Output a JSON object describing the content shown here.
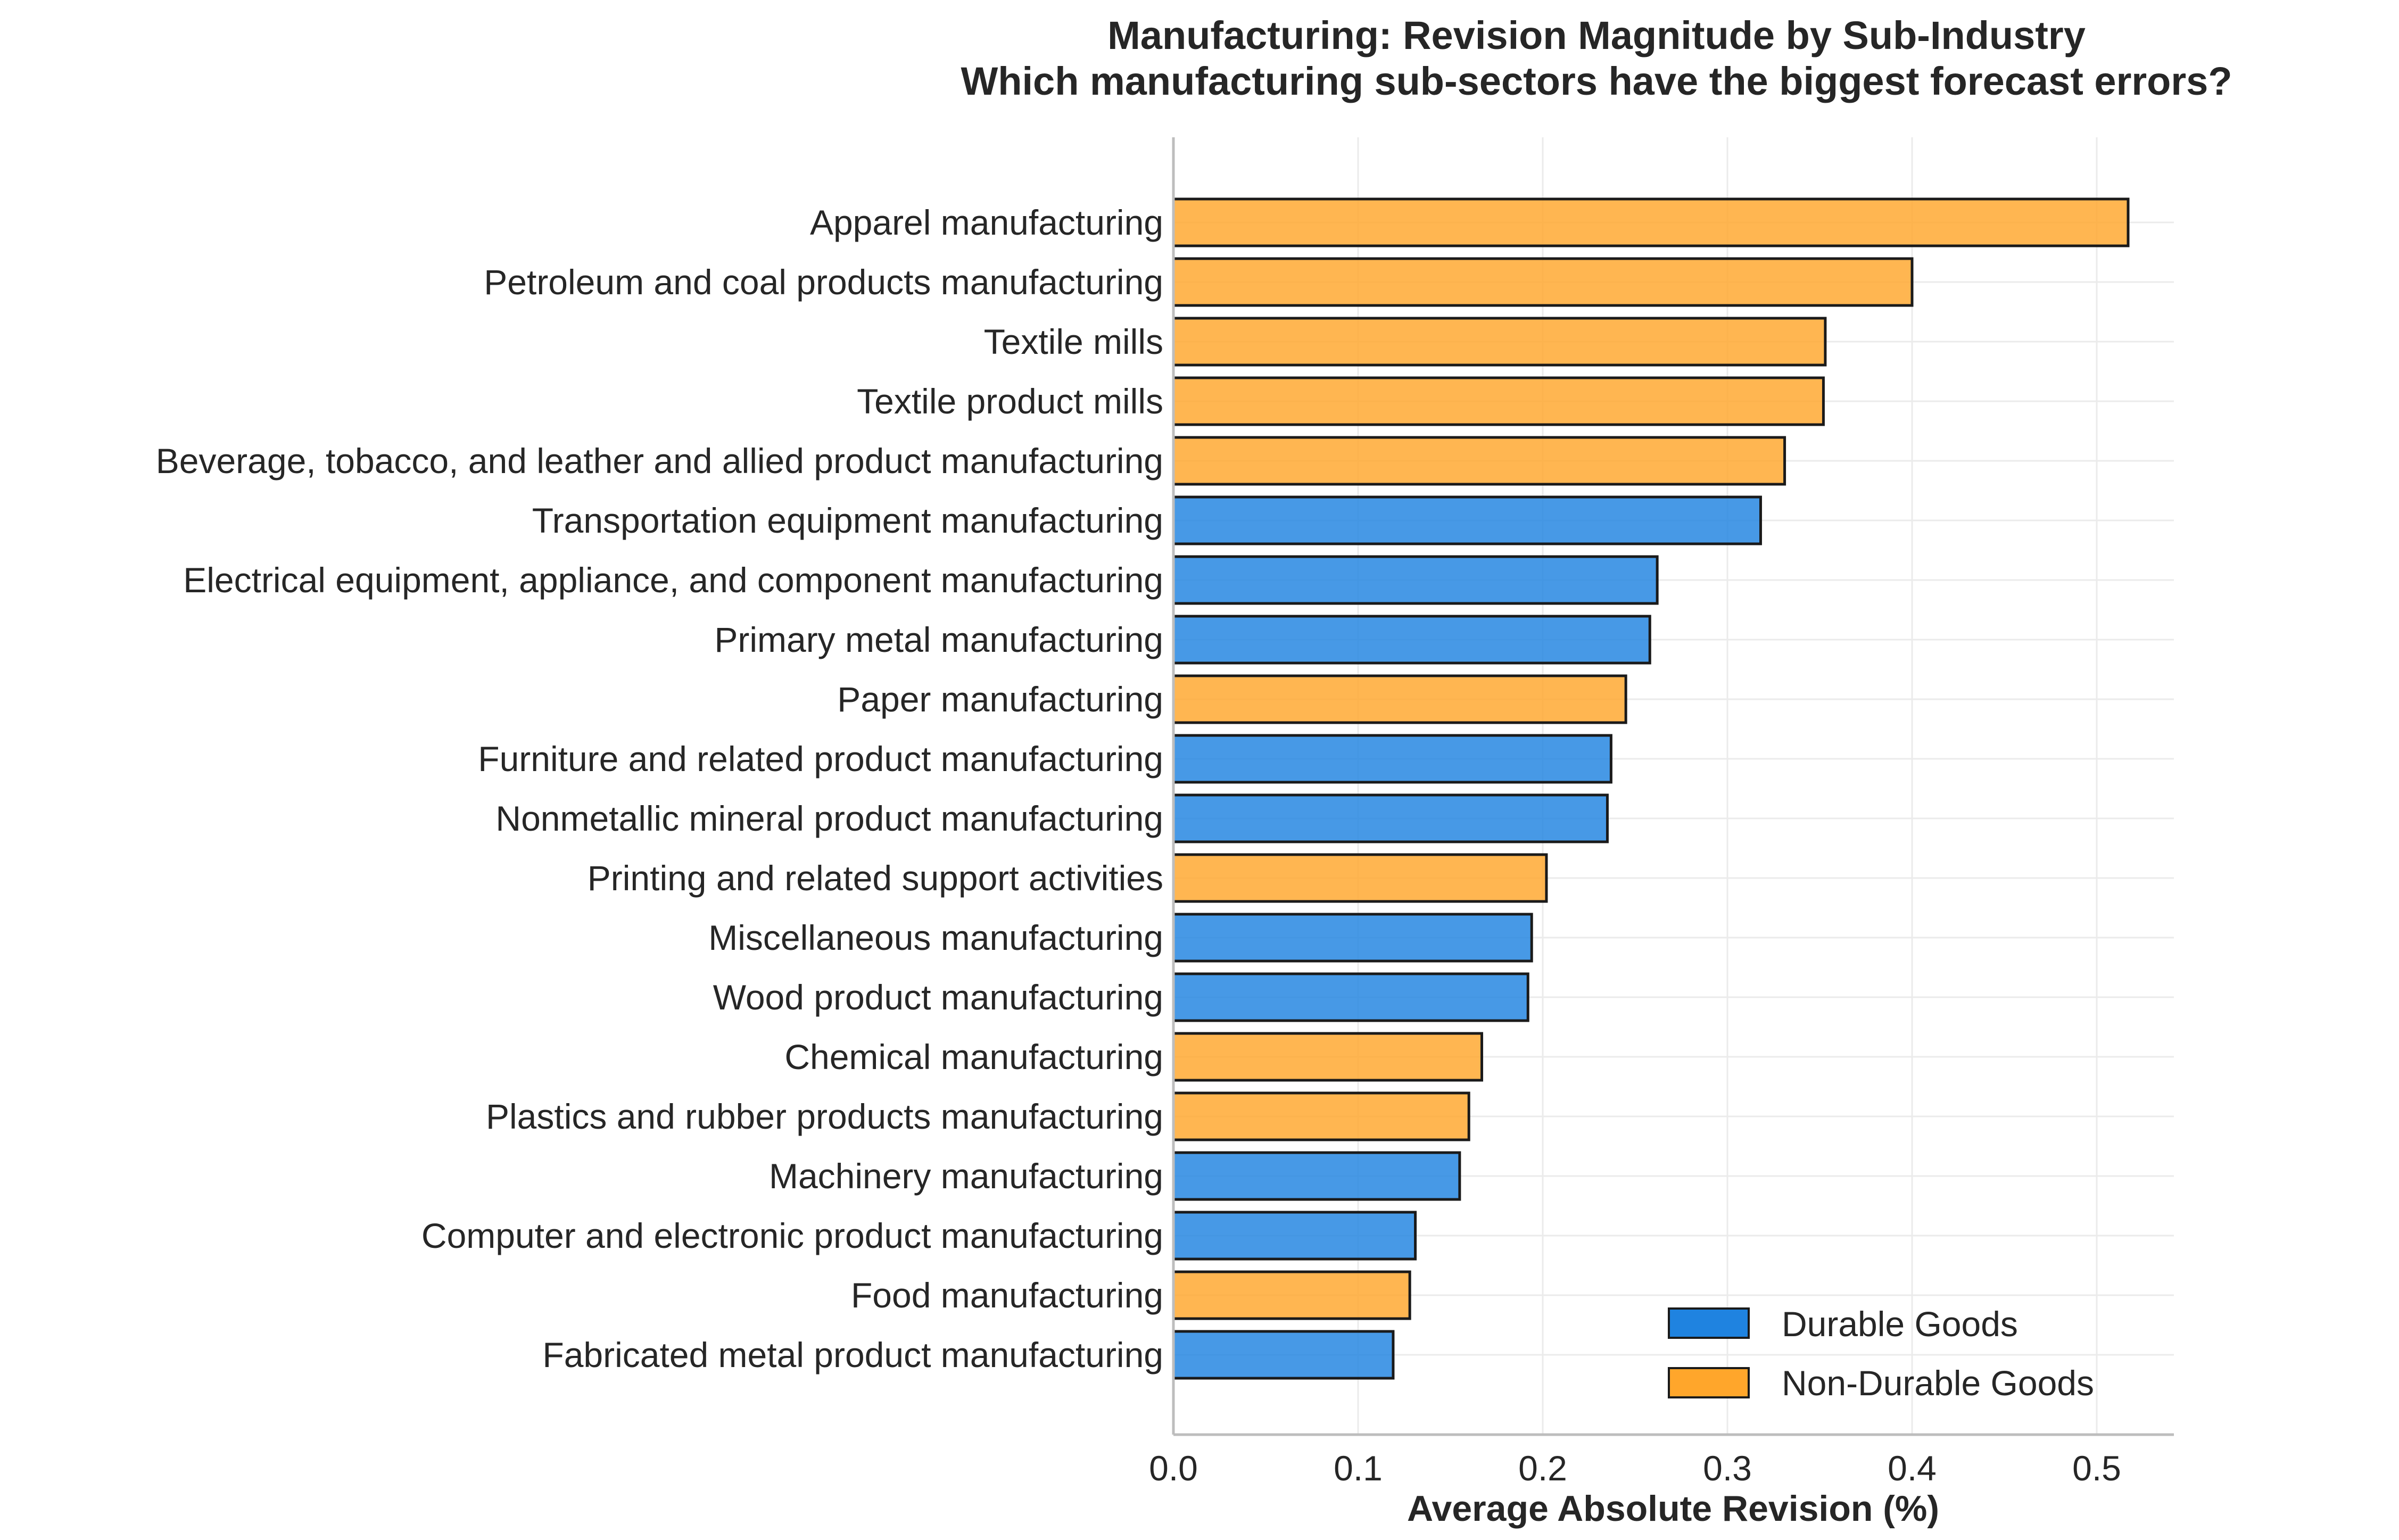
{
  "chart_data": {
    "type": "bar",
    "orientation": "horizontal",
    "title": "Manufacturing: Revision Magnitude by Sub-Industry",
    "subtitle": "Which manufacturing sub-sectors have the biggest forecast errors?",
    "xlabel": "Average Absolute Revision (%)",
    "ylabel": "",
    "xlim": [
      0,
      0.54
    ],
    "xticks": [
      "0.0",
      "0.1",
      "0.2",
      "0.3",
      "0.4",
      "0.5"
    ],
    "grid": true,
    "legend": {
      "placement": "lower-right",
      "entries": [
        {
          "label": "Durable Goods",
          "color": "#1f83e0"
        },
        {
          "label": "Non-Durable Goods",
          "color": "#ffa62b"
        }
      ]
    },
    "colors": {
      "Durable Goods": "#1f83e0",
      "Non-Durable Goods": "#ffa62b",
      "edge": "#1a1a1a"
    },
    "bars": [
      {
        "label": "Apparel manufacturing",
        "value": 0.517,
        "group": "Non-Durable Goods"
      },
      {
        "label": "Petroleum and coal products manufacturing",
        "value": 0.4,
        "group": "Non-Durable Goods"
      },
      {
        "label": "Textile mills",
        "value": 0.353,
        "group": "Non-Durable Goods"
      },
      {
        "label": "Textile product mills",
        "value": 0.352,
        "group": "Non-Durable Goods"
      },
      {
        "label": "Beverage, tobacco, and leather and allied product manufacturing",
        "value": 0.331,
        "group": "Non-Durable Goods"
      },
      {
        "label": "Transportation equipment manufacturing",
        "value": 0.318,
        "group": "Durable Goods"
      },
      {
        "label": "Electrical equipment, appliance, and component manufacturing",
        "value": 0.262,
        "group": "Durable Goods"
      },
      {
        "label": "Primary metal manufacturing",
        "value": 0.258,
        "group": "Durable Goods"
      },
      {
        "label": "Paper manufacturing",
        "value": 0.245,
        "group": "Non-Durable Goods"
      },
      {
        "label": "Furniture and related product manufacturing",
        "value": 0.237,
        "group": "Durable Goods"
      },
      {
        "label": "Nonmetallic mineral product manufacturing",
        "value": 0.235,
        "group": "Durable Goods"
      },
      {
        "label": "Printing and related support activities",
        "value": 0.202,
        "group": "Non-Durable Goods"
      },
      {
        "label": "Miscellaneous manufacturing",
        "value": 0.194,
        "group": "Durable Goods"
      },
      {
        "label": "Wood product manufacturing",
        "value": 0.192,
        "group": "Durable Goods"
      },
      {
        "label": "Chemical manufacturing",
        "value": 0.167,
        "group": "Non-Durable Goods"
      },
      {
        "label": "Plastics and rubber products manufacturing",
        "value": 0.16,
        "group": "Non-Durable Goods"
      },
      {
        "label": "Machinery manufacturing",
        "value": 0.155,
        "group": "Durable Goods"
      },
      {
        "label": "Computer and electronic product manufacturing",
        "value": 0.131,
        "group": "Durable Goods"
      },
      {
        "label": "Food manufacturing",
        "value": 0.128,
        "group": "Non-Durable Goods"
      },
      {
        "label": "Fabricated metal product manufacturing",
        "value": 0.119,
        "group": "Durable Goods"
      }
    ]
  }
}
